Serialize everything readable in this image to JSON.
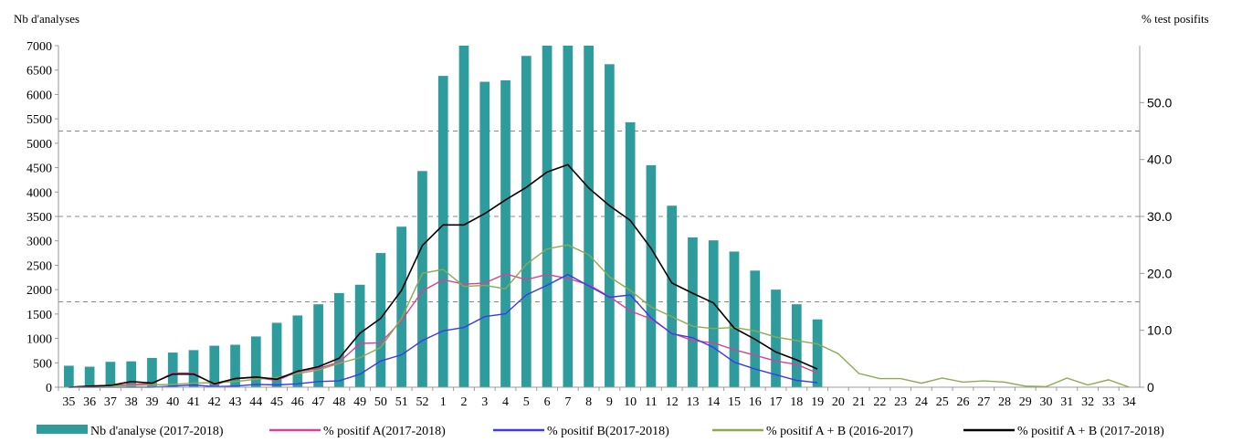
{
  "chart_data": {
    "type": "bar+line",
    "left_axis_title": "Nb d'analyses",
    "right_axis_title": "% test posifits",
    "left_ylim": [
      0,
      7000
    ],
    "left_ticks": [
      0,
      500,
      1000,
      1500,
      2000,
      2500,
      3000,
      3500,
      4000,
      4500,
      5000,
      5500,
      6000,
      6500,
      7000
    ],
    "right_ylim": [
      0,
      60
    ],
    "right_ticks": [
      "0",
      "10.0",
      "20.0",
      "30.0",
      "40.0",
      "50.0"
    ],
    "right_tick_values": [
      0,
      10,
      20,
      30,
      40,
      50
    ],
    "categories": [
      "35",
      "36",
      "37",
      "38",
      "39",
      "40",
      "41",
      "42",
      "43",
      "44",
      "45",
      "46",
      "47",
      "48",
      "49",
      "50",
      "51",
      "52",
      "1",
      "2",
      "3",
      "4",
      "5",
      "6",
      "7",
      "8",
      "9",
      "10",
      "11",
      "12",
      "13",
      "14",
      "15",
      "16",
      "17",
      "18",
      "19",
      "20",
      "21",
      "22",
      "23",
      "24",
      "25",
      "26",
      "27",
      "28",
      "29",
      "30",
      "31",
      "32",
      "33",
      "34"
    ],
    "grid": "dashed horizontal at right-axis 15, 30, 45",
    "colors": {
      "bars": "#2e9c9c",
      "pos_a_1718": "#d9409a",
      "pos_b_1718": "#3a3af0",
      "pos_ab_1617": "#8cab50",
      "pos_ab_1718": "#000000"
    },
    "series": [
      {
        "name": "Nb d'analyse (2017-2018)",
        "kind": "bar",
        "axis": "left",
        "values": [
          440,
          420,
          520,
          530,
          600,
          710,
          760,
          850,
          870,
          1040,
          1320,
          1470,
          1700,
          1930,
          2100,
          2750,
          3290,
          4430,
          6380,
          7000,
          6260,
          6290,
          6790,
          7000,
          7000,
          7000,
          6620,
          5430,
          4550,
          3720,
          3070,
          3010,
          2780,
          2390,
          2000,
          1700,
          1390,
          null,
          null,
          null,
          null,
          null,
          null,
          null,
          null,
          null,
          null,
          null,
          null,
          null,
          null,
          null
        ]
      },
      {
        "name": "% positif A(2017-2018)",
        "kind": "line",
        "axis": "right",
        "values": [
          0,
          0.2,
          0.3,
          0.5,
          0.6,
          2.5,
          2.5,
          0.4,
          1.5,
          1.7,
          1.2,
          2.7,
          3.3,
          4.4,
          7.7,
          7.8,
          11.7,
          16.9,
          18.9,
          18.1,
          18.3,
          19.9,
          18.9,
          19.8,
          19.1,
          18.0,
          15.9,
          13.4,
          12.0,
          9.5,
          8.2,
          7.8,
          6.6,
          5.6,
          4.6,
          4.0,
          2.5,
          null,
          null,
          null,
          null,
          null,
          null,
          null,
          null,
          null,
          null,
          null,
          null,
          null,
          null,
          null
        ]
      },
      {
        "name": "% positif B(2017-2018)",
        "kind": "line",
        "axis": "right",
        "values": [
          0,
          0,
          0,
          0,
          0,
          0.2,
          0.4,
          0.1,
          0.2,
          0.5,
          0.4,
          0.6,
          1.0,
          1.1,
          2.3,
          4.6,
          5.7,
          8.2,
          9.9,
          10.5,
          12.4,
          12.9,
          16.2,
          17.9,
          19.8,
          17.8,
          15.8,
          16.2,
          12.2,
          9.4,
          8.7,
          7.0,
          4.4,
          3.2,
          2.2,
          1.2,
          0.8,
          null,
          null,
          null,
          null,
          null,
          null,
          null,
          null,
          null,
          null,
          null,
          null,
          null,
          null,
          null
        ]
      },
      {
        "name": "% positif A + B (2016-2017)",
        "kind": "line",
        "axis": "right",
        "values": [
          0,
          0.1,
          0.2,
          0.3,
          0.4,
          0.5,
          0.7,
          0.8,
          1.0,
          1.4,
          1.7,
          2.4,
          3.0,
          4.2,
          5.2,
          7.0,
          12.1,
          20.0,
          20.7,
          17.7,
          17.9,
          17.3,
          21.6,
          24.3,
          25.0,
          23.3,
          19.4,
          17.0,
          14.1,
          12.4,
          10.7,
          10.3,
          10.5,
          9.9,
          8.8,
          8.2,
          7.6,
          5.9,
          2.4,
          1.5,
          1.5,
          0.7,
          1.6,
          0.9,
          1.1,
          0.9,
          0.2,
          0.1,
          1.6,
          0.4,
          1.3,
          0
        ]
      },
      {
        "name": "% positif A + B (2017-2018)",
        "kind": "line",
        "axis": "right",
        "values": [
          0,
          0.2,
          0.3,
          1.0,
          0.7,
          2.3,
          2.3,
          0.6,
          1.5,
          1.8,
          1.4,
          2.8,
          3.6,
          5.1,
          9.5,
          12.1,
          17.0,
          24.9,
          28.5,
          28.5,
          30.5,
          32.9,
          35.1,
          37.8,
          39.1,
          35.0,
          31.9,
          29.3,
          24.4,
          18.3,
          16.5,
          14.8,
          10.4,
          8.4,
          6.2,
          4.8,
          3.2,
          null,
          null,
          null,
          null,
          null,
          null,
          null,
          null,
          null,
          null,
          null,
          null,
          null,
          null,
          null
        ]
      }
    ]
  }
}
